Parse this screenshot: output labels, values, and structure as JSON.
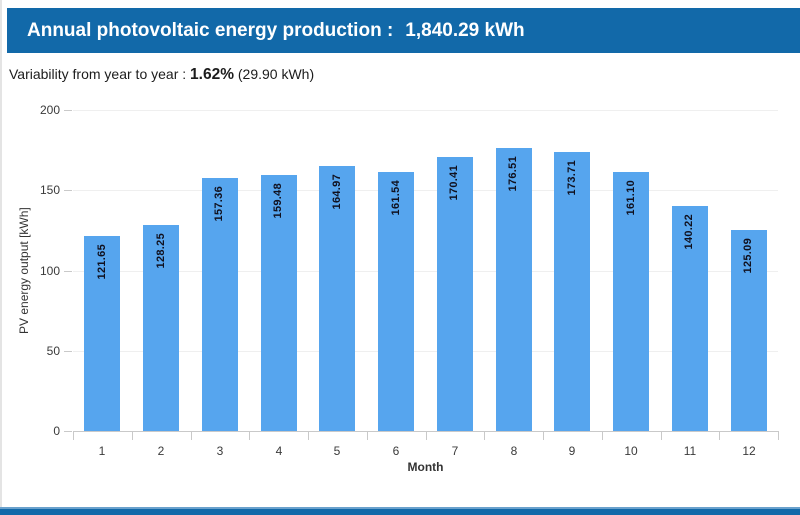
{
  "header": {
    "title": "Annual photovoltaic energy production :",
    "value": "1,840.29 kWh"
  },
  "subtitle": {
    "label": "Variability from year to year :",
    "value": "1.62%",
    "detail": "(29.90 kWh)"
  },
  "chart_data": {
    "type": "bar",
    "categories": [
      "1",
      "2",
      "3",
      "4",
      "5",
      "6",
      "7",
      "8",
      "9",
      "10",
      "11",
      "12"
    ],
    "values": [
      121.65,
      128.25,
      157.36,
      159.48,
      164.97,
      161.54,
      170.41,
      176.51,
      173.71,
      161.1,
      140.22,
      125.09
    ],
    "title": "",
    "xlabel": "Month",
    "ylabel": "PV energy output [kWh]",
    "ylim": [
      0,
      200
    ],
    "yticks": [
      0,
      50,
      100,
      150,
      200
    ],
    "grid": true,
    "legend": false,
    "value_labels_rotated": true
  },
  "colors": {
    "header_bg": "#1269a9",
    "header_text": "#ffffff",
    "bar": "#56a5ee",
    "bar_label": "#10101e",
    "gridline": "#efefef",
    "axis": "#c9c9c9",
    "tick_text": "#3a3a3a"
  }
}
